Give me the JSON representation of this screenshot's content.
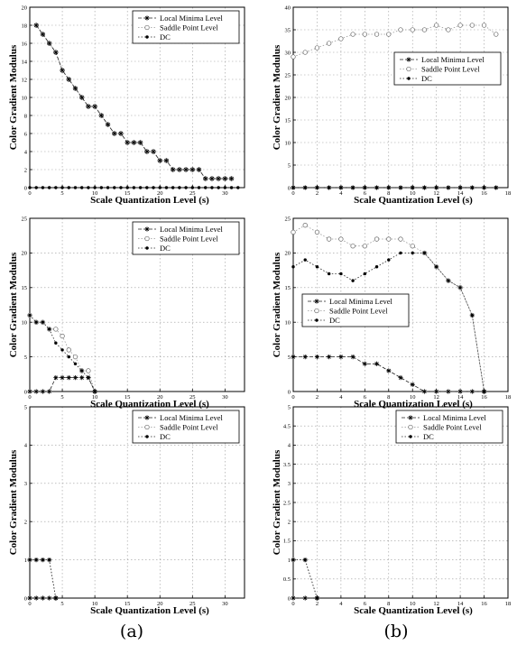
{
  "panel_labels": [
    "(a)",
    "(b)"
  ],
  "chart_data": [
    {
      "type": "line",
      "xlabel": "Scale Quantization Level (s)",
      "ylabel": "Color Gradient Modulus",
      "xlim": [
        0,
        33
      ],
      "ylim": [
        0,
        20
      ],
      "xticks": [
        0,
        5,
        10,
        15,
        20,
        25,
        30
      ],
      "yticks": [
        0,
        2,
        4,
        6,
        8,
        10,
        12,
        14,
        16,
        18,
        20
      ],
      "grid": true,
      "legend": [
        "Local Minima Level",
        "Saddle Point Level",
        "DC"
      ],
      "legend_position": "top-right",
      "series": [
        {
          "name": "Local Minima Level",
          "x": [
            1,
            2,
            3,
            4,
            5,
            6,
            7,
            8,
            9,
            10,
            11,
            12,
            13,
            14,
            15,
            16,
            17,
            18,
            19,
            20,
            21,
            22,
            23,
            24,
            25,
            26,
            27,
            28,
            29,
            30,
            31
          ],
          "y": [
            18,
            17,
            16,
            15,
            13,
            12,
            11,
            10,
            9,
            9,
            8,
            7,
            6,
            6,
            5,
            5,
            5,
            4,
            4,
            3,
            3,
            2,
            2,
            2,
            2,
            2,
            1,
            1,
            1,
            1,
            1
          ]
        },
        {
          "name": "Saddle Point Level",
          "x": [
            1,
            2,
            3,
            4,
            5,
            6,
            7,
            8,
            9,
            10,
            11,
            12,
            13,
            14,
            15,
            16,
            17,
            18,
            19,
            20,
            21,
            22,
            23,
            24,
            25,
            26,
            27,
            28,
            29,
            30,
            31
          ],
          "y": [
            18,
            17,
            16,
            15,
            13,
            12,
            11,
            10,
            9,
            9,
            8,
            7,
            6,
            6,
            5,
            5,
            5,
            4,
            4,
            3,
            3,
            2,
            2,
            2,
            2,
            2,
            1,
            1,
            1,
            1,
            1
          ]
        },
        {
          "name": "DC",
          "x": [
            0,
            1,
            2,
            3,
            4,
            5,
            6,
            7,
            8,
            9,
            10,
            11,
            12,
            13,
            14,
            15,
            16,
            17,
            18,
            19,
            20,
            21,
            22,
            23,
            24,
            25,
            26,
            27,
            28,
            29,
            30,
            31,
            32
          ],
          "y": [
            0,
            0,
            0,
            0,
            0,
            0,
            0,
            0,
            0,
            0,
            0,
            0,
            0,
            0,
            0,
            0,
            0,
            0,
            0,
            0,
            0,
            0,
            0,
            0,
            0,
            0,
            0,
            0,
            0,
            0,
            0,
            0,
            0
          ]
        }
      ]
    },
    {
      "type": "line",
      "xlabel": "Scale Quantization Level (s)",
      "ylabel": "Color Gradient Modulus",
      "xlim": [
        0,
        18
      ],
      "ylim": [
        0,
        40
      ],
      "xticks": [
        0,
        2,
        4,
        6,
        8,
        10,
        12,
        14,
        16,
        18
      ],
      "yticks": [
        0,
        5,
        10,
        15,
        20,
        25,
        30,
        35,
        40
      ],
      "grid": true,
      "legend": [
        "Local Minima Level",
        "Saddle Point Level",
        "DC"
      ],
      "legend_position": "top-right",
      "series": [
        {
          "name": "Local Minima Level",
          "x": [
            0,
            1,
            2,
            3,
            4,
            5,
            6,
            7,
            8,
            9,
            10,
            11,
            12,
            13,
            14,
            15,
            16,
            17
          ],
          "y": [
            0,
            0,
            0,
            0,
            0,
            0,
            0,
            0,
            0,
            0,
            0,
            0,
            0,
            0,
            0,
            0,
            0,
            0
          ]
        },
        {
          "name": "Saddle Point Level",
          "x": [
            0,
            1,
            2,
            3,
            4,
            5,
            6,
            7,
            8,
            9,
            10,
            11,
            12,
            13,
            14,
            15,
            16,
            17
          ],
          "y": [
            29,
            30,
            31,
            32,
            33,
            34,
            34,
            34,
            34,
            35,
            35,
            35,
            36,
            35,
            36,
            36,
            36,
            34
          ]
        },
        {
          "name": "DC",
          "x": [
            0,
            1,
            2,
            3,
            4,
            5,
            6,
            7,
            8,
            9,
            10,
            11,
            12,
            13,
            14,
            15,
            16,
            17
          ],
          "y": [
            0,
            0,
            0,
            0,
            0,
            0,
            0,
            0,
            0,
            0,
            0,
            0,
            0,
            0,
            0,
            0,
            0,
            0
          ]
        }
      ]
    },
    {
      "type": "line",
      "xlabel": "Scale Quantization Level (s)",
      "ylabel": "Color Gradient Modulus",
      "xlim": [
        0,
        33
      ],
      "ylim": [
        0,
        25
      ],
      "xticks": [
        0,
        5,
        10,
        15,
        20,
        25,
        30
      ],
      "yticks": [
        0,
        5,
        10,
        15,
        20,
        25
      ],
      "grid": true,
      "legend": [
        "Local Minima Level",
        "Saddle Point Level",
        "DC"
      ],
      "legend_position": "top-right",
      "series": [
        {
          "name": "Local Minima Level",
          "x": [
            0,
            1,
            2,
            3,
            4,
            5,
            6,
            7,
            8,
            9,
            10
          ],
          "y": [
            0,
            0,
            0,
            0,
            2,
            2,
            2,
            2,
            2,
            2,
            0
          ]
        },
        {
          "name": "Saddle Point Level",
          "x": [
            0,
            1,
            2,
            3,
            4,
            5,
            6,
            7,
            8,
            9,
            10
          ],
          "y": [
            11,
            10,
            10,
            9,
            9,
            8,
            6,
            5,
            3,
            3,
            0
          ]
        },
        {
          "name": "DC",
          "x": [
            0,
            1,
            2,
            3,
            4,
            5,
            6,
            7,
            8,
            9,
            10
          ],
          "y": [
            11,
            10,
            10,
            9,
            7,
            6,
            5,
            4,
            3,
            2,
            0
          ]
        }
      ]
    },
    {
      "type": "line",
      "xlabel": "Scale Quantization Level (s)",
      "ylabel": "Color Gradient Modulus",
      "xlim": [
        0,
        18
      ],
      "ylim": [
        0,
        25
      ],
      "xticks": [
        0,
        2,
        4,
        6,
        8,
        10,
        12,
        14,
        16,
        18
      ],
      "yticks": [
        0,
        5,
        10,
        15,
        20,
        25
      ],
      "grid": true,
      "legend": [
        "Local Minima Level",
        "Saddle Point Level",
        "DC"
      ],
      "legend_position": "center-left",
      "series": [
        {
          "name": "Local Minima Level",
          "x": [
            0,
            1,
            2,
            3,
            4,
            5,
            6,
            7,
            8,
            9,
            10,
            11,
            12,
            13,
            14,
            15,
            16
          ],
          "y": [
            5,
            5,
            5,
            5,
            5,
            5,
            4,
            4,
            3,
            2,
            1,
            0,
            0,
            0,
            0,
            0,
            0
          ]
        },
        {
          "name": "Saddle Point Level",
          "x": [
            0,
            1,
            2,
            3,
            4,
            5,
            6,
            7,
            8,
            9,
            10,
            11,
            12,
            13,
            14,
            15,
            16
          ],
          "y": [
            23,
            24,
            23,
            22,
            22,
            21,
            21,
            22,
            22,
            22,
            21,
            20,
            18,
            16,
            15,
            11,
            0
          ]
        },
        {
          "name": "DC",
          "x": [
            0,
            1,
            2,
            3,
            4,
            5,
            6,
            7,
            8,
            9,
            10,
            11,
            12,
            13,
            14,
            15,
            16
          ],
          "y": [
            18,
            19,
            18,
            17,
            17,
            16,
            17,
            18,
            19,
            20,
            20,
            20,
            18,
            16,
            15,
            11,
            0
          ]
        }
      ]
    },
    {
      "type": "line",
      "xlabel": "Scale Quantization Level (s)",
      "ylabel": "Color Gradient Modulus",
      "xlim": [
        0,
        33
      ],
      "ylim": [
        0,
        5
      ],
      "xticks": [
        0,
        5,
        10,
        15,
        20,
        25,
        30
      ],
      "yticks": [
        0,
        1,
        2,
        3,
        4,
        5
      ],
      "grid": true,
      "legend": [
        "Local Minima Level",
        "Saddle Point Level",
        "DC"
      ],
      "legend_position": "top-right",
      "series": [
        {
          "name": "Local Minima Level",
          "x": [
            0,
            1,
            2,
            3,
            4
          ],
          "y": [
            0,
            0,
            0,
            0,
            0
          ]
        },
        {
          "name": "Saddle Point Level",
          "x": [
            0,
            1,
            2,
            3,
            4
          ],
          "y": [
            1,
            1,
            1,
            1,
            0
          ]
        },
        {
          "name": "DC",
          "x": [
            0,
            1,
            2,
            3,
            4
          ],
          "y": [
            1,
            1,
            1,
            1,
            0
          ]
        }
      ]
    },
    {
      "type": "line",
      "xlabel": "Scale Quantization Level (s)",
      "ylabel": "Color Gradient Modulus",
      "xlim": [
        0,
        18
      ],
      "ylim": [
        0,
        5
      ],
      "xticks": [
        0,
        2,
        4,
        6,
        8,
        10,
        12,
        14,
        16,
        18
      ],
      "yticks": [
        0,
        0.5,
        1,
        1.5,
        2,
        2.5,
        3,
        3.5,
        4,
        4.5,
        5
      ],
      "grid": true,
      "legend": [
        "Local Minima Level",
        "Saddle Point Level",
        "DC"
      ],
      "legend_position": "top-right",
      "series": [
        {
          "name": "Local Minima Level",
          "x": [
            0,
            1,
            2
          ],
          "y": [
            0,
            0,
            0
          ]
        },
        {
          "name": "Saddle Point Level",
          "x": [
            0,
            1,
            2
          ],
          "y": [
            1,
            1,
            0
          ]
        },
        {
          "name": "DC",
          "x": [
            0,
            1,
            2
          ],
          "y": [
            1,
            1,
            0
          ]
        }
      ]
    }
  ]
}
